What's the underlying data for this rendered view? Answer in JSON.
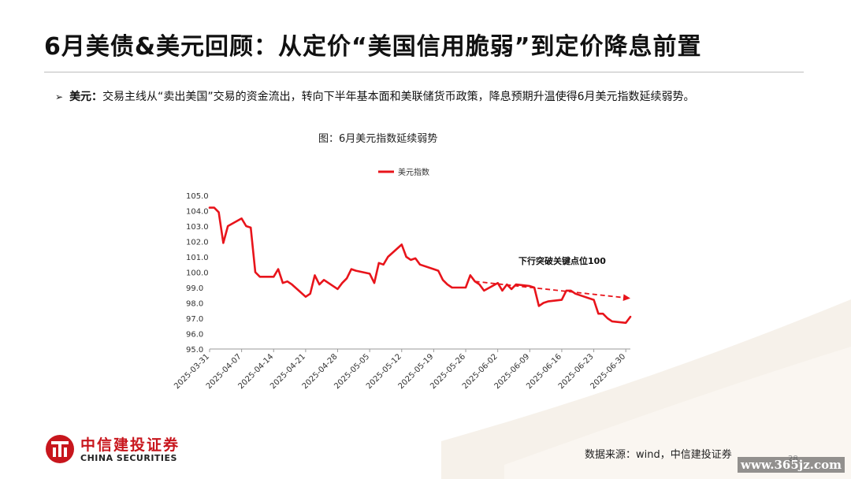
{
  "slide": {
    "title": "6月美债&美元回顾：从定价“美国信用脆弱”到定价降息前置",
    "bullet": {
      "marker": "➢",
      "label": "美元：",
      "text": "交易主线从“卖出美国”交易的资金流出，转向下半年基本面和美联储货币政策，降息预期升温使得6月美元指数延续弱势。"
    },
    "chart_caption": "图：6月美元指数延续弱势",
    "source": "数据来源：wind，中信建投证券",
    "logo": {
      "cn": "中信建投证券",
      "en": "CHINA SECURITIES"
    },
    "page_number": "28",
    "watermark": "www.365jz.com"
  },
  "colors": {
    "series": "#e8141b",
    "accent": "#c8161d"
  },
  "chart_data": {
    "type": "line",
    "title": "",
    "xlabel": "",
    "ylabel": "",
    "ylim": [
      95.0,
      105.0
    ],
    "yticks": [
      "105.0",
      "104.0",
      "103.0",
      "102.0",
      "101.0",
      "100.0",
      "99.0",
      "98.0",
      "97.0",
      "96.0",
      "95.0"
    ],
    "x_tick_labels": [
      "2025-03-31",
      "2025-04-07",
      "2025-04-14",
      "2025-04-21",
      "2025-04-28",
      "2025-05-05",
      "2025-05-12",
      "2025-05-19",
      "2025-05-26",
      "2025-06-02",
      "2025-06-09",
      "2025-06-16",
      "2025-06-23",
      "2025-06-30"
    ],
    "legend": {
      "position": "top-center",
      "entries": [
        "美元指数"
      ]
    },
    "series": [
      {
        "name": "美元指数",
        "x": [
          "2025-03-31",
          "2025-04-01",
          "2025-04-02",
          "2025-04-03",
          "2025-04-04",
          "2025-04-07",
          "2025-04-08",
          "2025-04-09",
          "2025-04-10",
          "2025-04-11",
          "2025-04-14",
          "2025-04-15",
          "2025-04-16",
          "2025-04-17",
          "2025-04-18",
          "2025-04-21",
          "2025-04-22",
          "2025-04-23",
          "2025-04-24",
          "2025-04-25",
          "2025-04-28",
          "2025-04-29",
          "2025-04-30",
          "2025-05-01",
          "2025-05-02",
          "2025-05-05",
          "2025-05-06",
          "2025-05-07",
          "2025-05-08",
          "2025-05-09",
          "2025-05-12",
          "2025-05-13",
          "2025-05-14",
          "2025-05-15",
          "2025-05-16",
          "2025-05-19",
          "2025-05-20",
          "2025-05-21",
          "2025-05-22",
          "2025-05-23",
          "2025-05-26",
          "2025-05-27",
          "2025-05-28",
          "2025-05-29",
          "2025-05-30",
          "2025-06-02",
          "2025-06-03",
          "2025-06-04",
          "2025-06-05",
          "2025-06-06",
          "2025-06-09",
          "2025-06-10",
          "2025-06-11",
          "2025-06-12",
          "2025-06-13",
          "2025-06-16",
          "2025-06-17",
          "2025-06-18",
          "2025-06-19",
          "2025-06-20",
          "2025-06-23",
          "2025-06-24",
          "2025-06-25",
          "2025-06-26",
          "2025-06-27",
          "2025-06-30",
          "2025-07-01"
        ],
        "values": [
          104.2,
          104.2,
          103.9,
          101.9,
          103.0,
          103.5,
          103.0,
          102.9,
          100.0,
          99.7,
          99.7,
          100.2,
          99.3,
          99.4,
          99.2,
          98.4,
          98.6,
          99.8,
          99.2,
          99.5,
          98.9,
          99.3,
          99.6,
          100.2,
          100.1,
          99.9,
          99.3,
          100.6,
          100.5,
          101.0,
          101.8,
          101.0,
          100.8,
          100.9,
          100.5,
          100.2,
          100.1,
          99.5,
          99.2,
          99.0,
          99.0,
          99.8,
          99.4,
          99.2,
          98.8,
          99.3,
          98.8,
          99.2,
          98.9,
          99.2,
          99.1,
          99.0,
          97.8,
          98.0,
          98.1,
          98.2,
          98.8,
          98.8,
          98.6,
          98.5,
          98.2,
          97.3,
          97.3,
          97.0,
          96.8,
          96.7,
          97.1
        ]
      }
    ],
    "annotations": [
      {
        "text": "下行突破关键点位100",
        "type": "dashed-arrow",
        "from": {
          "x": "2025-05-28",
          "y": 99.4
        },
        "to": {
          "x": "2025-07-01",
          "y": 98.3
        }
      }
    ]
  }
}
